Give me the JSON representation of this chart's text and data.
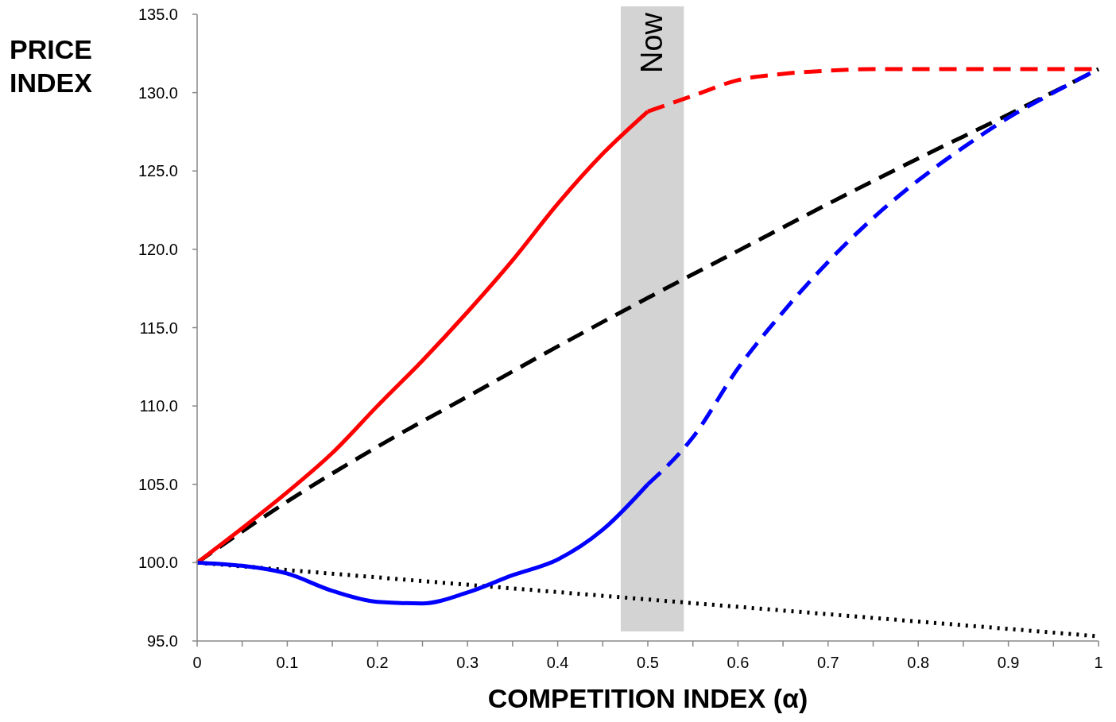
{
  "chart_data": {
    "type": "line",
    "xlabel": "COMPETITION INDEX (α)",
    "ylabel": "PRICE INDEX",
    "xlim": [
      0,
      1
    ],
    "ylim": [
      95,
      135
    ],
    "xticks": [
      0,
      {
        "value": 0.05,
        "label": null
      },
      0.1,
      {
        "value": 0.15,
        "label": null
      },
      0.2,
      {
        "value": 0.25,
        "label": null
      },
      0.3,
      {
        "value": 0.35,
        "label": null
      },
      0.4,
      {
        "value": 0.45,
        "label": null
      },
      0.5,
      {
        "value": 0.55,
        "label": null
      },
      0.6,
      {
        "value": 0.65,
        "label": null
      },
      0.7,
      {
        "value": 0.75,
        "label": null
      },
      0.8,
      {
        "value": 0.85,
        "label": null
      },
      0.9,
      {
        "value": 0.95,
        "label": null
      },
      1
    ],
    "yticks": [
      {
        "value": 95,
        "label": "95.0"
      },
      {
        "value": 100,
        "label": "100.0"
      },
      {
        "value": 105,
        "label": "105.0"
      },
      {
        "value": 110,
        "label": "110.0"
      },
      {
        "value": 115,
        "label": "115.0"
      },
      {
        "value": 120,
        "label": "120.0"
      },
      {
        "value": 125,
        "label": "125.0"
      },
      {
        "value": 130,
        "label": "130.0"
      },
      {
        "value": 135,
        "label": "135.0"
      }
    ],
    "grid": false,
    "marker": "none",
    "bands": [
      {
        "axis": "x",
        "from": 0.47,
        "to": 0.54,
        "label": "Now",
        "color": "#d3d3d3"
      }
    ],
    "series": [
      {
        "color": "#000000",
        "line_style": "dotted",
        "x": [
          0,
          1
        ],
        "values": [
          100,
          95.3
        ]
      },
      {
        "color": "#000000",
        "line_style": "dashed",
        "x": [
          0,
          0.1,
          0.2,
          0.3,
          0.4,
          0.5,
          0.6,
          0.7,
          0.8,
          0.9,
          1
        ],
        "values": [
          100,
          103.9,
          107.4,
          110.6,
          113.8,
          116.9,
          119.9,
          122.9,
          125.8,
          128.6,
          131.5
        ]
      },
      {
        "color": "#ff0000",
        "line_style": "solid",
        "x": [
          0,
          0.05,
          0.1,
          0.15,
          0.2,
          0.25,
          0.3,
          0.35,
          0.4,
          0.45,
          0.5
        ],
        "values": [
          100,
          102.2,
          104.5,
          107,
          110,
          112.9,
          116,
          119.3,
          122.9,
          126.1,
          128.8
        ]
      },
      {
        "color": "#ff0000",
        "line_style": "dashed",
        "x": [
          0.5,
          0.55,
          0.6,
          0.65,
          0.7,
          0.75,
          0.8,
          0.85,
          0.9,
          0.95,
          1
        ],
        "values": [
          128.8,
          129.8,
          130.8,
          131.2,
          131.4,
          131.5,
          131.5,
          131.5,
          131.5,
          131.5,
          131.5
        ]
      },
      {
        "color": "#0000ff",
        "line_style": "solid",
        "x": [
          0,
          0.05,
          0.1,
          0.15,
          0.2,
          0.25,
          0.3,
          0.35,
          0.4,
          0.45,
          0.5
        ],
        "values": [
          100,
          99.8,
          99.3,
          98.2,
          97.5,
          97.4,
          98.1,
          99.2,
          100.2,
          102.1,
          105
        ]
      },
      {
        "color": "#0000ff",
        "line_style": "dashed",
        "x": [
          0.5,
          0.55,
          0.6,
          0.65,
          0.7,
          0.75,
          0.8,
          0.85,
          0.9,
          0.95,
          1
        ],
        "values": [
          105,
          108,
          112.4,
          116,
          119.2,
          122,
          124.4,
          126.5,
          128.4,
          130,
          131.5
        ]
      }
    ]
  }
}
